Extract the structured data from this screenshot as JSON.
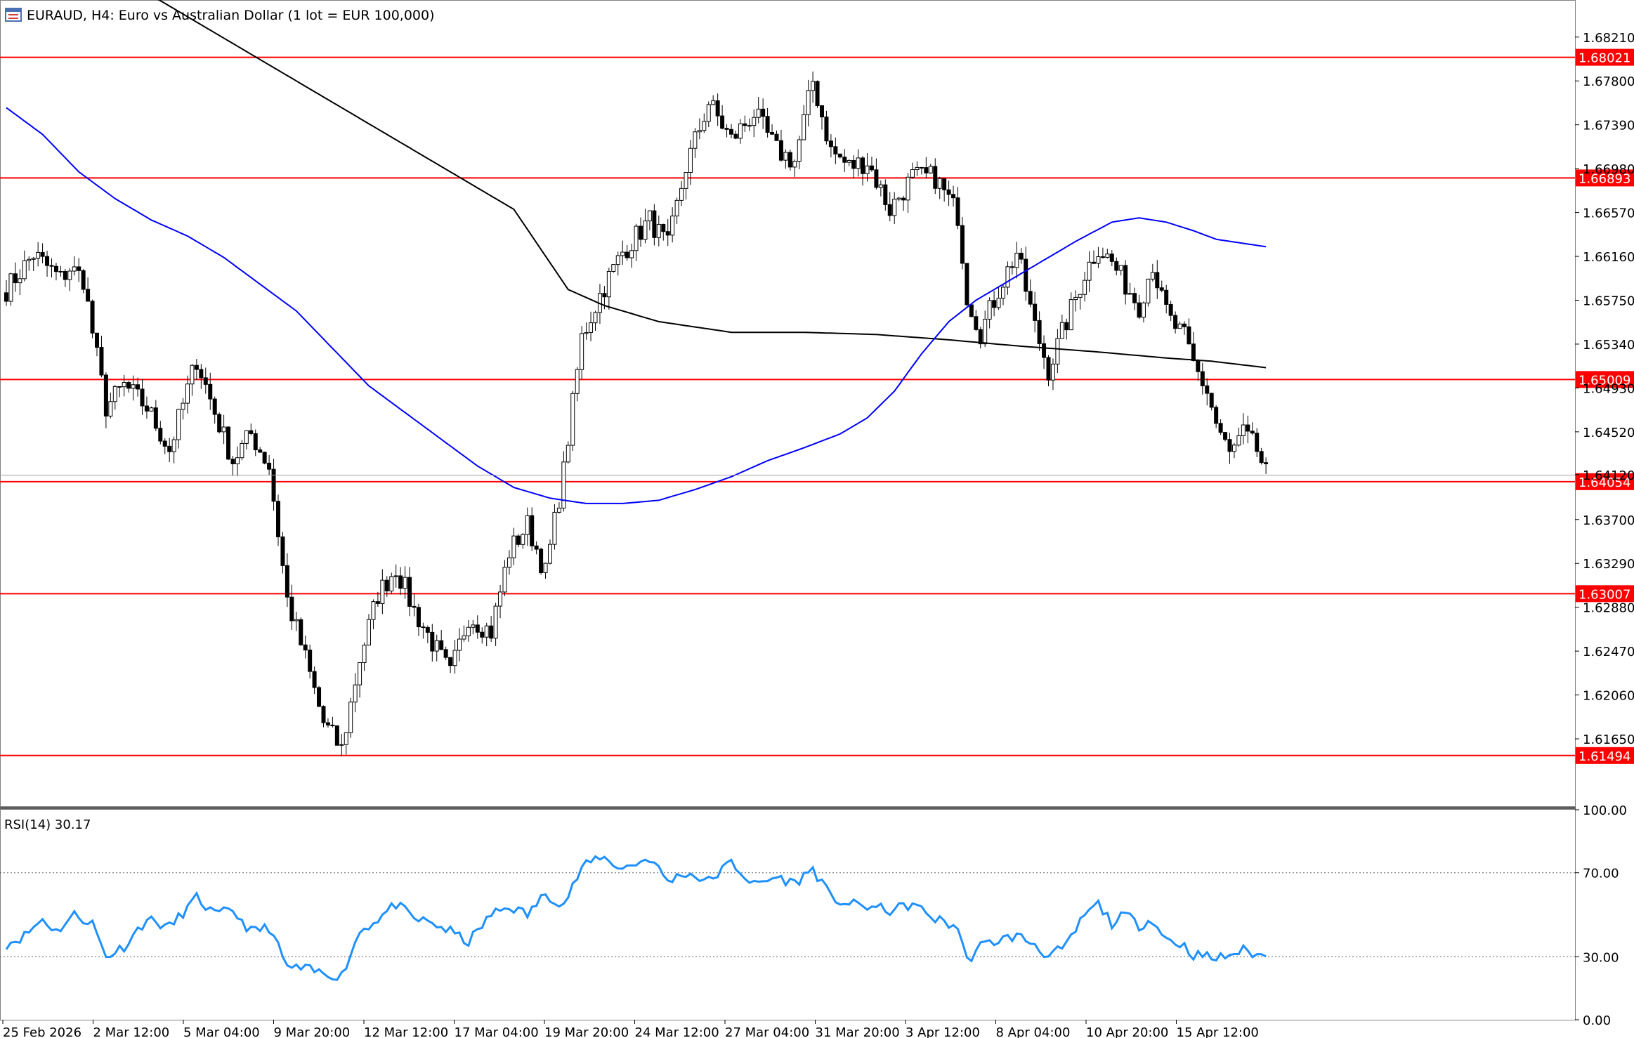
{
  "header": {
    "title": "EURAUD, H4:  Euro vs Australian Dollar (1 lot = EUR 100,000)",
    "icon": "chart-window-icon"
  },
  "colors": {
    "bull": "#ffffff",
    "bear": "#000000",
    "wick": "#000000",
    "level": "#ff0000",
    "ma_fast": "#0000ff",
    "ma_slow": "#000000",
    "rsi": "#1e90ff"
  },
  "chart_data": [
    {
      "type": "candlestick",
      "title": "EURAUD, H4:  Euro vs Australian Dollar (1 lot = EUR 100,000)",
      "ylim": [
        1.6102,
        1.6855
      ],
      "price_ticks": [
        "1.68210",
        "1.67800",
        "1.67390",
        "1.66980",
        "1.66570",
        "1.66160",
        "1.65750",
        "1.65340",
        "1.64930",
        "1.64520",
        "1.64120",
        "1.63700",
        "1.63290",
        "1.62880",
        "1.62470",
        "1.62060",
        "1.61650"
      ],
      "x_labels": [
        "25 Feb 2026",
        "2 Mar 12:00",
        "5 Mar 04:00",
        "9 Mar 20:00",
        "12 Mar 12:00",
        "17 Mar 04:00",
        "19 Mar 20:00",
        "24 Mar 12:00",
        "27 Mar 04:00",
        "31 Mar 20:00",
        "3 Apr 12:00",
        "8 Apr 04:00",
        "10 Apr 20:00",
        "15 Apr 12:00"
      ],
      "levels": [
        {
          "label": "1.68021",
          "value": 1.68021
        },
        {
          "label": "1.66893",
          "value": 1.66893
        },
        {
          "label": "1.65009",
          "value": 1.65009
        },
        {
          "label": "1.64054",
          "value": 1.64054
        },
        {
          "label": "1.63007",
          "value": 1.63007
        },
        {
          "label": "1.61494",
          "value": 1.61494
        }
      ],
      "current_price": 1.64115,
      "waypoints": [
        [
          0,
          1.6585
        ],
        [
          6,
          1.6618
        ],
        [
          12,
          1.6595
        ],
        [
          14,
          1.6605
        ],
        [
          17,
          1.6595
        ],
        [
          19,
          1.6545
        ],
        [
          22,
          1.6475
        ],
        [
          26,
          1.6495
        ],
        [
          31,
          1.6475
        ],
        [
          36,
          1.6435
        ],
        [
          42,
          1.652
        ],
        [
          46,
          1.647
        ],
        [
          50,
          1.6425
        ],
        [
          54,
          1.645
        ],
        [
          58,
          1.642
        ],
        [
          62,
          1.6295
        ],
        [
          66,
          1.624
        ],
        [
          70,
          1.618
        ],
        [
          74,
          1.6155
        ],
        [
          78,
          1.624
        ],
        [
          82,
          1.63
        ],
        [
          86,
          1.6325
        ],
        [
          90,
          1.6285
        ],
        [
          94,
          1.6255
        ],
        [
          98,
          1.6225
        ],
        [
          102,
          1.628
        ],
        [
          107,
          1.6265
        ],
        [
          111,
          1.634
        ],
        [
          115,
          1.6365
        ],
        [
          119,
          1.632
        ],
        [
          123,
          1.6415
        ],
        [
          127,
          1.654
        ],
        [
          131,
          1.658
        ],
        [
          136,
          1.662
        ],
        [
          142,
          1.665
        ],
        [
          146,
          1.6625
        ],
        [
          150,
          1.67
        ],
        [
          155,
          1.676
        ],
        [
          160,
          1.6725
        ],
        [
          165,
          1.675
        ],
        [
          170,
          1.6715
        ],
        [
          174,
          1.6705
        ],
        [
          178,
          1.678
        ],
        [
          182,
          1.6715
        ],
        [
          186,
          1.67
        ],
        [
          190,
          1.6705
        ],
        [
          195,
          1.666
        ],
        [
          200,
          1.669
        ],
        [
          205,
          1.669
        ],
        [
          210,
          1.6655
        ],
        [
          212,
          1.658
        ],
        [
          215,
          1.6545
        ],
        [
          219,
          1.6585
        ],
        [
          223,
          1.662
        ],
        [
          227,
          1.655
        ],
        [
          230,
          1.651
        ],
        [
          234,
          1.6555
        ],
        [
          238,
          1.66
        ],
        [
          241,
          1.6625
        ],
        [
          244,
          1.661
        ],
        [
          247,
          1.659
        ],
        [
          250,
          1.657
        ],
        [
          253,
          1.661
        ],
        [
          255,
          1.6575
        ],
        [
          257,
          1.6555
        ],
        [
          260,
          1.654
        ],
        [
          262,
          1.6515
        ],
        [
          265,
          1.649
        ],
        [
          267,
          1.646
        ],
        [
          270,
          1.643
        ],
        [
          273,
          1.645
        ],
        [
          276,
          1.6435
        ],
        [
          278,
          1.6412
        ]
      ],
      "ma_fast_points": [
        [
          0,
          1.6755
        ],
        [
          8,
          1.673
        ],
        [
          16,
          1.6695
        ],
        [
          24,
          1.667
        ],
        [
          32,
          1.665
        ],
        [
          40,
          1.6635
        ],
        [
          48,
          1.6615
        ],
        [
          56,
          1.659
        ],
        [
          64,
          1.6565
        ],
        [
          72,
          1.653
        ],
        [
          80,
          1.6495
        ],
        [
          88,
          1.647
        ],
        [
          96,
          1.6445
        ],
        [
          104,
          1.642
        ],
        [
          112,
          1.64
        ],
        [
          120,
          1.639
        ],
        [
          128,
          1.6385
        ],
        [
          136,
          1.6385
        ],
        [
          144,
          1.6388
        ],
        [
          152,
          1.6398
        ],
        [
          160,
          1.641
        ],
        [
          168,
          1.6425
        ],
        [
          176,
          1.6437
        ],
        [
          184,
          1.645
        ],
        [
          190,
          1.6465
        ],
        [
          196,
          1.649
        ],
        [
          202,
          1.6525
        ],
        [
          208,
          1.6555
        ],
        [
          214,
          1.6575
        ],
        [
          220,
          1.659
        ],
        [
          228,
          1.661
        ],
        [
          236,
          1.663
        ],
        [
          244,
          1.6648
        ],
        [
          250,
          1.6652
        ],
        [
          256,
          1.6648
        ],
        [
          262,
          1.664
        ],
        [
          267,
          1.6632
        ],
        [
          278,
          1.6625
        ]
      ],
      "ma_slow_points": [
        [
          0,
          1.6935
        ],
        [
          16,
          1.69
        ],
        [
          32,
          1.686
        ],
        [
          48,
          1.682
        ],
        [
          64,
          1.678
        ],
        [
          80,
          1.674
        ],
        [
          96,
          1.67
        ],
        [
          112,
          1.666
        ],
        [
          124,
          1.6585
        ],
        [
          132,
          1.657
        ],
        [
          144,
          1.6555
        ],
        [
          160,
          1.6545
        ],
        [
          176,
          1.6545
        ],
        [
          192,
          1.6543
        ],
        [
          208,
          1.6538
        ],
        [
          224,
          1.6532
        ],
        [
          240,
          1.6527
        ],
        [
          256,
          1.6521
        ],
        [
          266,
          1.6518
        ],
        [
          278,
          1.6512
        ]
      ]
    },
    {
      "type": "line",
      "name": "RSI(14)",
      "label": "RSI(14) 30.17",
      "last_value": 30.17,
      "ylim": [
        0,
        100
      ],
      "y_ticks": [
        "100.00",
        "70.00",
        "30.00",
        "0.00"
      ],
      "levels": [
        70,
        30
      ],
      "waypoints": [
        [
          0,
          36
        ],
        [
          4,
          40
        ],
        [
          8,
          48
        ],
        [
          11,
          42
        ],
        [
          15,
          50
        ],
        [
          19,
          46
        ],
        [
          22,
          30
        ],
        [
          26,
          35
        ],
        [
          31,
          48
        ],
        [
          36,
          44
        ],
        [
          42,
          58
        ],
        [
          46,
          50
        ],
        [
          50,
          52
        ],
        [
          54,
          42
        ],
        [
          58,
          44
        ],
        [
          62,
          25
        ],
        [
          66,
          24
        ],
        [
          70,
          22
        ],
        [
          74,
          21
        ],
        [
          78,
          42
        ],
        [
          82,
          48
        ],
        [
          86,
          55
        ],
        [
          90,
          48
        ],
        [
          94,
          46
        ],
        [
          98,
          42
        ],
        [
          102,
          37
        ],
        [
          107,
          50
        ],
        [
          111,
          54
        ],
        [
          115,
          50
        ],
        [
          119,
          60
        ],
        [
          123,
          55
        ],
        [
          127,
          72
        ],
        [
          131,
          78
        ],
        [
          136,
          72
        ],
        [
          142,
          77
        ],
        [
          146,
          66
        ],
        [
          150,
          70
        ],
        [
          155,
          66
        ],
        [
          160,
          75
        ],
        [
          165,
          64
        ],
        [
          170,
          68
        ],
        [
          174,
          65
        ],
        [
          178,
          72
        ],
        [
          182,
          58
        ],
        [
          186,
          55
        ],
        [
          190,
          54
        ],
        [
          195,
          52
        ],
        [
          200,
          55
        ],
        [
          205,
          48
        ],
        [
          210,
          44
        ],
        [
          212,
          28
        ],
        [
          215,
          35
        ],
        [
          219,
          38
        ],
        [
          223,
          40
        ],
        [
          227,
          36
        ],
        [
          230,
          30
        ],
        [
          234,
          35
        ],
        [
          238,
          50
        ],
        [
          241,
          55
        ],
        [
          244,
          46
        ],
        [
          247,
          50
        ],
        [
          250,
          45
        ],
        [
          253,
          48
        ],
        [
          255,
          40
        ],
        [
          257,
          38
        ],
        [
          260,
          35
        ],
        [
          262,
          31
        ],
        [
          265,
          30
        ],
        [
          267,
          29
        ],
        [
          270,
          31
        ],
        [
          273,
          33
        ],
        [
          276,
          31
        ],
        [
          278,
          30.17
        ]
      ]
    }
  ]
}
